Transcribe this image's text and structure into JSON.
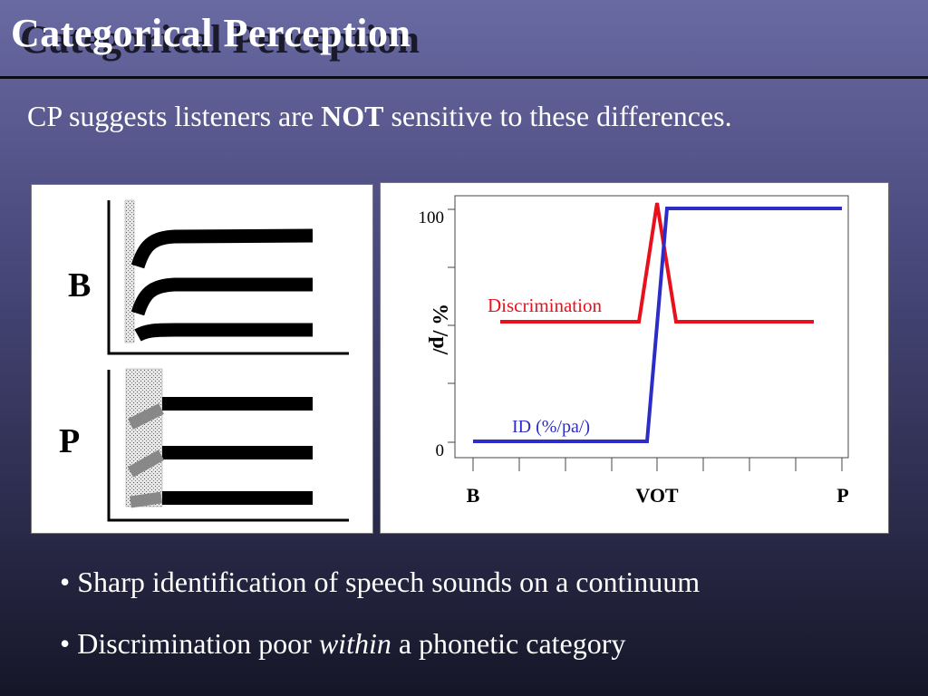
{
  "slide": {
    "title": "Categorical Perception",
    "subtitle": {
      "pre": "CP suggests listeners are ",
      "emph": "NOT",
      "post": " sensitive to these differences."
    },
    "bullets": [
      {
        "bullet": "•",
        "pre": "Sharp identification of speech sounds on a continuum",
        "emph": "",
        "post": ""
      },
      {
        "bullet": "•",
        "pre": "Discrimination poor ",
        "emph": "within",
        "post": " a phonetic category"
      }
    ]
  },
  "left_figure": {
    "labels": {
      "top": "B",
      "bottom": "P"
    }
  },
  "right_figure": {
    "ylabel": "% /p/",
    "y_ticks": [
      "100",
      "0"
    ],
    "x_labels": [
      "B",
      "VOT",
      "P"
    ],
    "series": [
      {
        "name": "Discrimination",
        "color": "#e8101c"
      },
      {
        "name": "ID (%/pa/)",
        "color": "#2c2cc8"
      }
    ]
  }
}
